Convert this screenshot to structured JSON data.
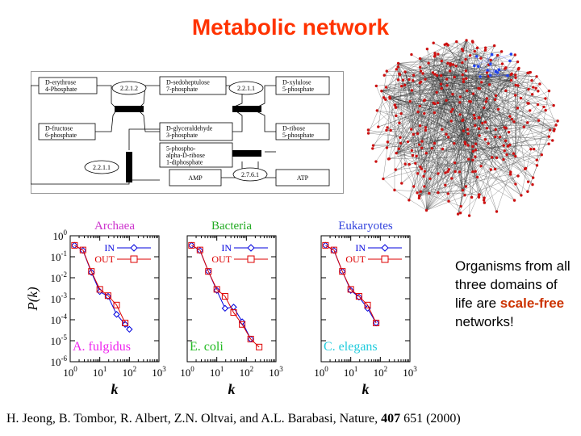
{
  "slide": {
    "title": "Metabolic network",
    "caption_parts": [
      "Organisms from all three domains of life are ",
      "scale-free",
      " networks!"
    ],
    "citation_parts": [
      "H. Jeong, B. Tombor, R. Albert, Z.N. Oltvai, and A.L. Barabasi, Nature, ",
      "407",
      " 651 (2000)"
    ]
  },
  "diagram": {
    "nodes": [
      {
        "id": "e4p",
        "lines": [
          "D-erythrose",
          "4-Phosphate"
        ]
      },
      {
        "id": "s7p",
        "lines": [
          "D-sedoheptulose",
          "7-phosphate"
        ]
      },
      {
        "id": "x5p",
        "lines": [
          "D-xylulose",
          "5-phosphate"
        ]
      },
      {
        "id": "f6p",
        "lines": [
          "D-fructose",
          "6-phosphate"
        ]
      },
      {
        "id": "g3p",
        "lines": [
          "D-glyceraldehyde",
          "3-phosphate"
        ]
      },
      {
        "id": "r5p",
        "lines": [
          "D-ribose",
          "5-phosphate"
        ]
      },
      {
        "id": "prpp",
        "lines": [
          "5-phospho-",
          "alpha-D-ribose",
          "1-diphosphate"
        ]
      },
      {
        "id": "amp",
        "lines": [
          "AMP"
        ]
      },
      {
        "id": "atp",
        "lines": [
          "ATP"
        ]
      }
    ],
    "enzymes": [
      "2.2.1.2",
      "2.2.1.1",
      "2.2.1.1",
      "2.7.6.1"
    ]
  },
  "network": {
    "node_color": "#cc1111",
    "highlight_color": "#2244ee",
    "edge_color": "#333333"
  },
  "chart_data": [
    {
      "type": "scatter",
      "title": "Archaea",
      "title_color": "#cc33cc",
      "organism": "A. fulgidus",
      "organism_color": "#ee22ee",
      "xlabel": "k",
      "ylabel": "P(k)",
      "xscale": "log",
      "yscale": "log",
      "xlim": [
        1,
        1000
      ],
      "ylim": [
        1e-06,
        1
      ],
      "x_ticks": [
        "10^0",
        "10^1",
        "10^2",
        "10^3"
      ],
      "y_ticks": [
        "10^0",
        "10^-1",
        "10^-2",
        "10^-3",
        "10^-4",
        "10^-5",
        "10^-6"
      ],
      "legend": "top-right",
      "series": [
        {
          "name": "IN",
          "color": "#0000dd",
          "marker": "diamond",
          "x": [
            1.4,
            2.7,
            5.2,
            10,
            19,
            37,
            72,
            100
          ],
          "y": [
            0.35,
            0.2,
            0.018,
            0.0022,
            0.0013,
            0.00018,
            6e-05,
            3.5e-05
          ]
        },
        {
          "name": "OUT",
          "color": "#dd0000",
          "marker": "square",
          "x": [
            1.4,
            2.7,
            5.2,
            10,
            19,
            37,
            72
          ],
          "y": [
            0.35,
            0.21,
            0.02,
            0.0028,
            0.0014,
            0.0005,
            7e-05
          ]
        }
      ]
    },
    {
      "type": "scatter",
      "title": "Bacteria",
      "title_color": "#22aa22",
      "organism": "E. coli",
      "organism_color": "#22bb22",
      "xlabel": "k",
      "ylabel": "",
      "xscale": "log",
      "yscale": "log",
      "xlim": [
        1,
        1000
      ],
      "ylim": [
        1e-06,
        1
      ],
      "x_ticks": [
        "10^0",
        "10^1",
        "10^2",
        "10^3"
      ],
      "y_ticks": [],
      "legend": "top-right",
      "series": [
        {
          "name": "IN",
          "color": "#0000dd",
          "marker": "diamond",
          "x": [
            1.4,
            2.7,
            5.2,
            10,
            19,
            37,
            72,
            140
          ],
          "y": [
            0.35,
            0.2,
            0.02,
            0.0025,
            0.00035,
            0.0004,
            8e-05,
            1.2e-05
          ]
        },
        {
          "name": "OUT",
          "color": "#dd0000",
          "marker": "square",
          "x": [
            1.4,
            2.7,
            5.2,
            10,
            19,
            37,
            72,
            140,
            270
          ],
          "y": [
            0.35,
            0.21,
            0.02,
            0.0028,
            0.0013,
            0.00022,
            6e-05,
            1.2e-05,
            5e-06
          ]
        }
      ]
    },
    {
      "type": "scatter",
      "title": "Eukaryotes",
      "title_color": "#3344dd",
      "organism": "C. elegans",
      "organism_color": "#22ccdd",
      "xlabel": "k",
      "ylabel": "",
      "xscale": "log",
      "yscale": "log",
      "xlim": [
        1,
        1000
      ],
      "ylim": [
        1e-06,
        1
      ],
      "x_ticks": [
        "10^0",
        "10^1",
        "10^2",
        "10^3"
      ],
      "y_ticks": [],
      "legend": "top-right",
      "series": [
        {
          "name": "IN",
          "color": "#0000dd",
          "marker": "diamond",
          "x": [
            1.4,
            2.7,
            5.2,
            10,
            19,
            37,
            72
          ],
          "y": [
            0.35,
            0.2,
            0.02,
            0.0025,
            0.0012,
            0.00035,
            7e-05
          ]
        },
        {
          "name": "OUT",
          "color": "#dd0000",
          "marker": "square",
          "x": [
            1.4,
            2.7,
            5.2,
            10,
            19,
            37,
            72
          ],
          "y": [
            0.35,
            0.21,
            0.02,
            0.0028,
            0.0013,
            0.0005,
            7e-05
          ]
        }
      ]
    }
  ]
}
